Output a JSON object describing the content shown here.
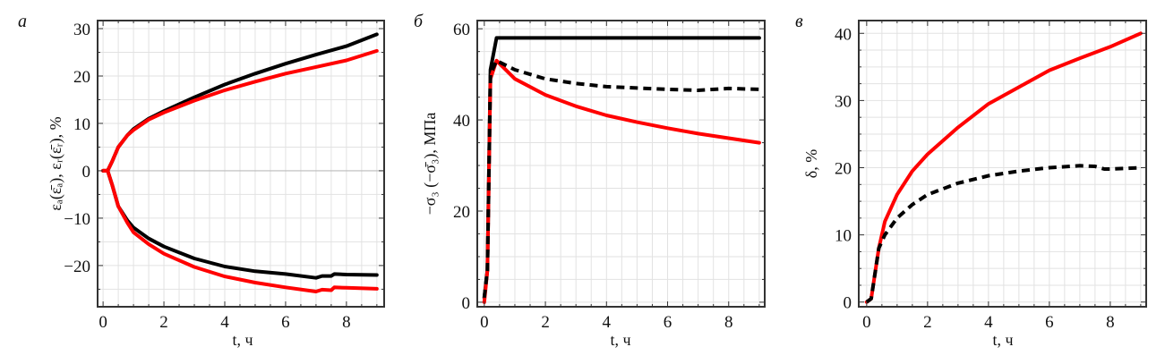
{
  "chart_data": [
    {
      "type": "line",
      "panel_letter": "а",
      "xlabel": "t, ч",
      "ylabel": "εₐ(ε̄ₐ), εᵣ(ε̄ᵣ), %",
      "xlim": [
        -0.18,
        9.24
      ],
      "ylim": [
        -28.7,
        31.7
      ],
      "xticks": [
        0,
        2,
        4,
        6,
        8
      ],
      "yticks": [
        -20,
        -10,
        0,
        10,
        20,
        30
      ],
      "xminor": 0.5,
      "yminor": 5,
      "grid": true,
      "zero_line": true,
      "series": [
        {
          "name": "black-upper",
          "color": "#000000",
          "dash": false,
          "x": [
            0,
            0.15,
            0.3,
            0.5,
            0.8,
            1,
            1.5,
            2,
            3,
            4,
            5,
            6,
            7,
            8,
            9
          ],
          "y": [
            0,
            0,
            2,
            5,
            7.5,
            8.8,
            11,
            12.6,
            15.5,
            18.2,
            20.5,
            22.6,
            24.5,
            26.3,
            28.8
          ]
        },
        {
          "name": "red-upper",
          "color": "#ff0000",
          "dash": false,
          "x": [
            0,
            0.15,
            0.3,
            0.5,
            0.8,
            1,
            1.5,
            2,
            3,
            4,
            5,
            6,
            7,
            8,
            9
          ],
          "y": [
            0,
            0,
            2,
            5,
            7.5,
            8.6,
            10.8,
            12.3,
            14.8,
            17,
            18.8,
            20.5,
            21.9,
            23.3,
            25.3
          ]
        },
        {
          "name": "black-lower",
          "color": "#000000",
          "dash": false,
          "x": [
            0.15,
            0.3,
            0.5,
            0.8,
            1,
            1.5,
            2,
            3,
            4,
            5,
            6,
            7,
            7.2,
            7.5,
            7.6,
            8,
            9
          ],
          "y": [
            0,
            -3,
            -7.5,
            -10.5,
            -12,
            -14.3,
            -16,
            -18.5,
            -20.2,
            -21.2,
            -21.8,
            -22.6,
            -22.2,
            -22.2,
            -21.8,
            -21.9,
            -22
          ]
        },
        {
          "name": "red-lower",
          "color": "#ff0000",
          "dash": false,
          "x": [
            0,
            0.15,
            0.3,
            0.5,
            0.8,
            1,
            1.5,
            2,
            3,
            4,
            5,
            6,
            7,
            7.2,
            7.5,
            7.6,
            8,
            9
          ],
          "y": [
            0,
            0,
            -3,
            -7.5,
            -11,
            -13,
            -15.5,
            -17.5,
            -20.3,
            -22.3,
            -23.6,
            -24.6,
            -25.5,
            -25.1,
            -25.2,
            -24.6,
            -24.7,
            -24.9
          ]
        }
      ]
    },
    {
      "type": "line",
      "panel_letter": "б",
      "xlabel": "t, ч",
      "ylabel": "−σ₃ (−σ̄₃), МПа",
      "xlim": [
        -0.23,
        9.18
      ],
      "ylim": [
        -1,
        61.8
      ],
      "xticks": [
        0,
        2,
        4,
        6,
        8
      ],
      "yticks": [
        0,
        20,
        40,
        60
      ],
      "xminor": 0.5,
      "yminor": 5,
      "grid": true,
      "zero_line": false,
      "series": [
        {
          "name": "black-solid",
          "color": "#000000",
          "dash": false,
          "x": [
            0,
            0.1,
            0.2,
            0.4,
            0.5,
            9
          ],
          "y": [
            1,
            7,
            51,
            58,
            58,
            58
          ]
        },
        {
          "name": "red",
          "color": "#ff0000",
          "dash": false,
          "x": [
            0,
            0.1,
            0.2,
            0.4,
            1,
            2,
            3,
            4,
            5,
            6,
            7,
            8,
            9
          ],
          "y": [
            0,
            7,
            49,
            53,
            49,
            45.5,
            43,
            41,
            39.5,
            38.2,
            37,
            36,
            35
          ]
        },
        {
          "name": "black-dashed",
          "color": "#000000",
          "dash": true,
          "x": [
            0,
            0.1,
            0.2,
            0.4,
            1,
            2,
            3,
            4,
            5,
            6,
            7,
            8,
            9
          ],
          "y": [
            1,
            7,
            50,
            53,
            51,
            49,
            48,
            47.3,
            47,
            46.7,
            46.5,
            46.9,
            46.7
          ]
        }
      ]
    },
    {
      "type": "line",
      "panel_letter": "в",
      "xlabel": "t, ч",
      "ylabel": "δ, %",
      "xlim": [
        -0.26,
        9.18
      ],
      "ylim": [
        -0.7,
        41.9
      ],
      "xticks": [
        0,
        2,
        4,
        6,
        8
      ],
      "yticks": [
        0,
        10,
        20,
        30,
        40
      ],
      "xminor": 0.5,
      "yminor": 2.5,
      "grid": true,
      "zero_line": false,
      "series": [
        {
          "name": "red",
          "color": "#ff0000",
          "dash": false,
          "x": [
            0,
            0.15,
            0.4,
            0.6,
            1,
            1.5,
            2,
            3,
            4,
            5,
            6,
            7,
            8,
            9
          ],
          "y": [
            0,
            0.5,
            8,
            12,
            16,
            19.5,
            22,
            26,
            29.5,
            32,
            34.5,
            36.3,
            38,
            40
          ]
        },
        {
          "name": "black-dashed",
          "color": "#000000",
          "dash": true,
          "x": [
            0,
            0.15,
            0.4,
            0.6,
            1,
            1.5,
            2,
            3,
            4,
            5,
            6,
            7,
            7.5,
            7.8,
            8,
            9
          ],
          "y": [
            0,
            0.5,
            8,
            10,
            12.5,
            14.5,
            16,
            17.7,
            18.8,
            19.5,
            20,
            20.3,
            20.2,
            19.8,
            19.8,
            20
          ]
        }
      ]
    }
  ]
}
